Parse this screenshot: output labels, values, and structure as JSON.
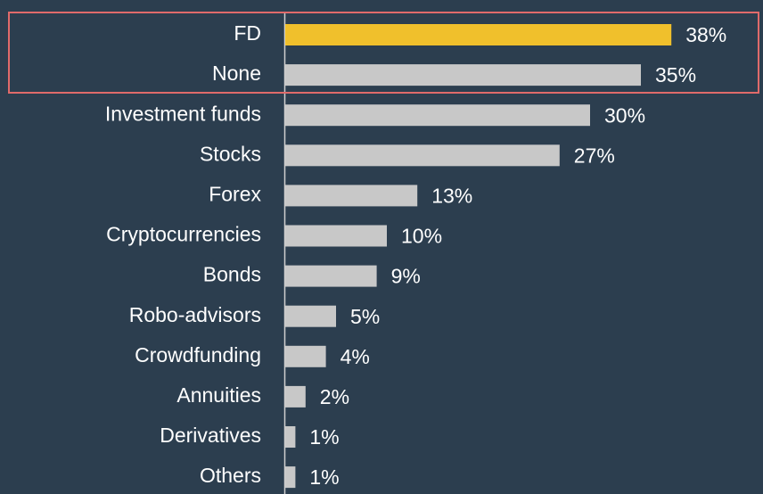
{
  "chart_data": {
    "type": "bar",
    "orientation": "horizontal",
    "categories": [
      "FD",
      "None",
      "Investment funds",
      "Stocks",
      "Forex",
      "Cryptocurrencies",
      "Bonds",
      "Robo-advisors",
      "Crowdfunding",
      "Annuities",
      "Derivatives",
      "Others"
    ],
    "values": [
      38,
      35,
      30,
      27,
      13,
      10,
      9,
      5,
      4,
      2,
      1,
      1
    ],
    "value_labels": [
      "38%",
      "35%",
      "30%",
      "27%",
      "13%",
      "10%",
      "9%",
      "5%",
      "4%",
      "2%",
      "1%",
      "1%"
    ],
    "colors": [
      "#f0c02c",
      "#c8c8c8",
      "#c8c8c8",
      "#c8c8c8",
      "#c8c8c8",
      "#c8c8c8",
      "#c8c8c8",
      "#c8c8c8",
      "#c8c8c8",
      "#c8c8c8",
      "#c8c8c8",
      "#c8c8c8"
    ]
  }
}
